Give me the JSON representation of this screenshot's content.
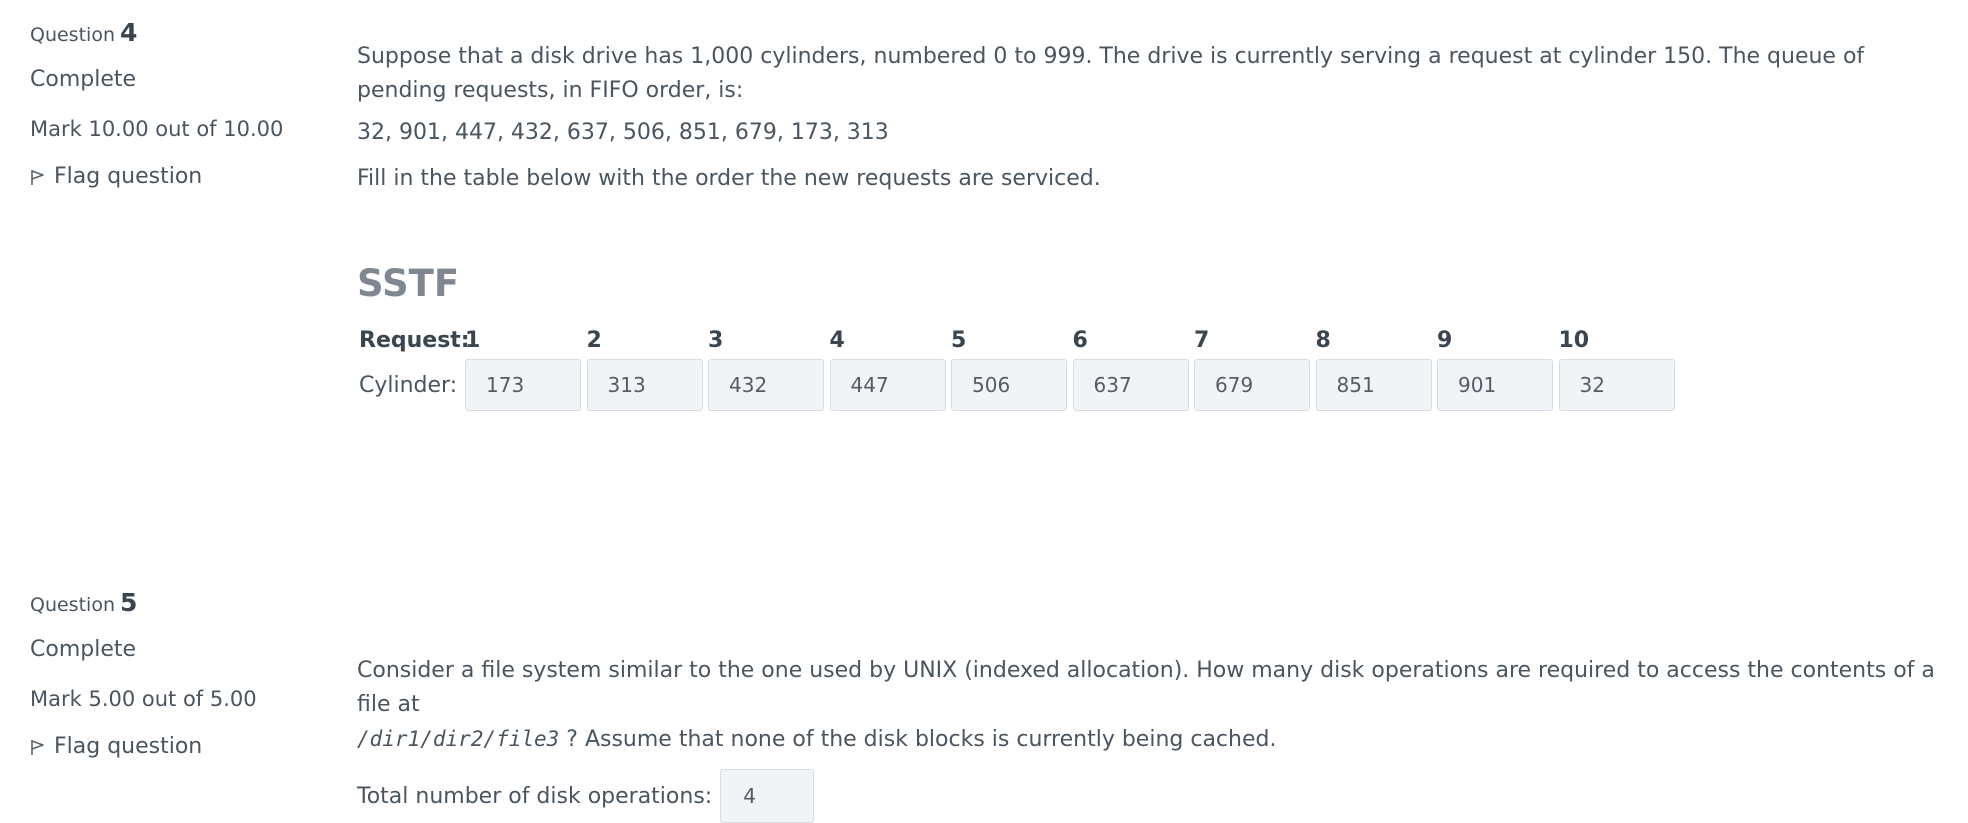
{
  "q4": {
    "label": "Question",
    "number": "4",
    "state": "Complete",
    "grade": "Mark 10.00 out of 10.00",
    "flag_label": "Flag question",
    "text1": "Suppose that a disk drive has 1,000 cylinders, numbered 0 to 999. The drive is currently serving a request at cylinder 150. The queue of pending requests, in FIFO order, is:",
    "queue": "32, 901, 447, 432, 637, 506, 851, 679, 173, 313",
    "instruction": "Fill in the table below with the order the new requests are serviced.",
    "algorithm": "SSTF",
    "request_label": "Request:",
    "cylinder_label": "Cylinder:",
    "request_numbers": [
      "1",
      "2",
      "3",
      "4",
      "5",
      "6",
      "7",
      "8",
      "9",
      "10"
    ],
    "cylinders": [
      "173",
      "313",
      "432",
      "447",
      "506",
      "637",
      "679",
      "851",
      "901",
      "32"
    ]
  },
  "q5": {
    "label": "Question",
    "number": "5",
    "state": "Complete",
    "grade": "Mark 5.00 out of 5.00",
    "flag_label": "Flag question",
    "text_before": "Consider a file system similar to the one used by UNIX (indexed allocation). How many disk operations are required to access the contents of a file at",
    "path": "/dir1/dir2/file3",
    "text_after": " ? Assume that none of the disk blocks is currently being cached.",
    "answer_label": "Total number of disk operations:",
    "answer_value": "4"
  }
}
